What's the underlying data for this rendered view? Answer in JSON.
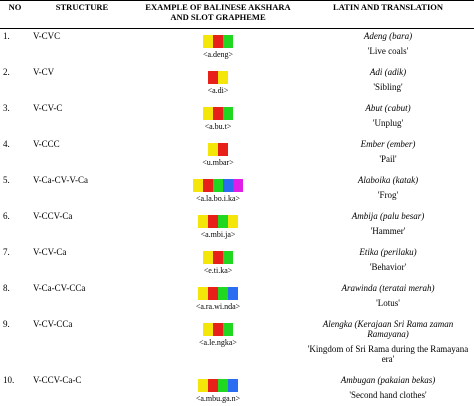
{
  "table": {
    "headers": [
      "NO",
      "STRUCTURE",
      "EXAMPLE OF BALINESE AKSHARA AND SLOT GRAPHEME",
      "LATIN AND TRANSLATION"
    ],
    "rows": [
      [
        "1.",
        "V-CVC",
        "<a.deng>",
        "Adeng (bara)",
        "'Live coals'"
      ],
      [
        "2.",
        "V-CV",
        "<a.di>",
        "Adi (adik)",
        "'Sibling'"
      ],
      [
        "3.",
        "V-CV-C",
        "<a.bu.t>",
        "Abut (cabut)",
        "'Unplug'"
      ],
      [
        "4.",
        "V-CCC",
        "<u.mbar>",
        "Ember (ember)",
        "'Pail'"
      ],
      [
        "5.",
        "V-Ca-CV-V-Ca",
        "<a.la.bo.i.ka>",
        "Alaboika (katak)",
        "'Frog'"
      ],
      [
        "6.",
        "V-CCV-Ca",
        "<a.mbi.ja>",
        "Ambija (palu besar)",
        "'Hammer'"
      ],
      [
        "7.",
        "V-CV-Ca",
        "<e.ti.ka>",
        "Etika (perilaku)",
        "'Behavior'"
      ],
      [
        "8.",
        "V-Ca-CV-CCa",
        "<a.ra.wi.nda>",
        "Arawinda (teratai merah)",
        "'Lotus'"
      ],
      [
        "9.",
        "V-CV-CCa",
        "<a.le.ngka>",
        "Alengka (Kerajaan Sri Rama zaman Ramayana)",
        "'Kingdom of Sri Rama during the Ramayana era'"
      ],
      [
        "10.",
        "V-CCV-Ca-C",
        "<a.mbu.ga.n>",
        "Ambugan (pakaian bekas)",
        "'Second hand clothes'"
      ]
    ]
  }
}
